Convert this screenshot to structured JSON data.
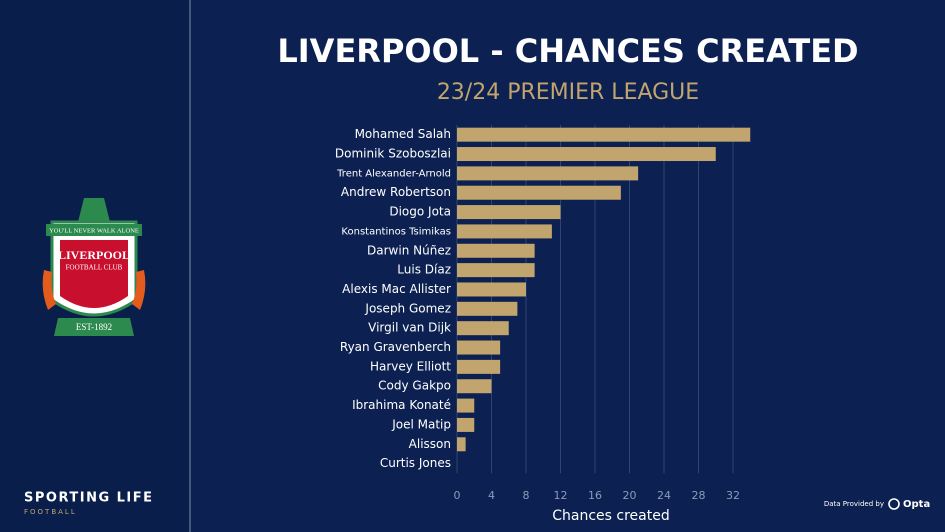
{
  "chart_data": {
    "type": "barh",
    "title": "LIVERPOOL - CHANCES CREATED",
    "subtitle": "23/24 PREMIER LEAGUE",
    "categories": [
      "Mohamed Salah",
      "Dominik Szoboszlai",
      "Trent Alexander-Arnold",
      "Andrew Robertson",
      "Diogo Jota",
      "Konstantinos Tsimikas",
      "Darwin Núñez",
      "Luis Díaz",
      "Alexis Mac Allister",
      "Joseph Gomez",
      "Virgil van Dijk",
      "Ryan Gravenberch",
      "Harvey Elliott",
      "Cody Gakpo",
      "Ibrahima Konaté",
      "Joel Matip",
      "Alisson",
      "Curtis Jones"
    ],
    "values": [
      34,
      30,
      21,
      19,
      12,
      11,
      9,
      9,
      8,
      7,
      6,
      5,
      5,
      4,
      2,
      2,
      1,
      0
    ],
    "color": "#c2a46e",
    "xlabel": "Chances created",
    "xlim": [
      0,
      35
    ],
    "xticks": [
      0,
      4,
      8,
      12,
      16,
      20,
      24,
      28,
      32
    ],
    "grid": true
  },
  "branding": {
    "crest_motto": "YOU'LL NEVER WALK ALONE",
    "crest_name": "LIVERPOOL",
    "crest_club": "FOOTBALL CLUB",
    "crest_est": "EST-1892",
    "brand": "SPORTING LIFE",
    "brand_sub": "FOOTBALL",
    "credit": "Data Provided by",
    "provider": "Opta"
  }
}
